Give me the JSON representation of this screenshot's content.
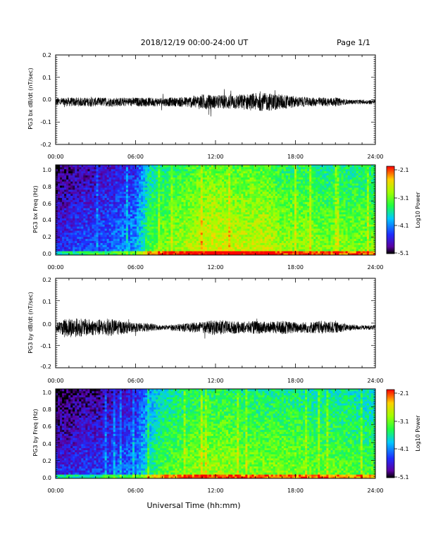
{
  "header": {
    "title": "2018/12/19  00:00-24:00 UT",
    "page": "Page 1/1"
  },
  "footer": {
    "xlabel": "Universal Time (hh:mm)"
  },
  "colorbar": {
    "label": "Log10 Power",
    "ticks": [
      "-2.1",
      "-3.1",
      "-4.1",
      "-5.1"
    ],
    "range": [
      -5.1,
      -2.1
    ]
  },
  "chart_data": [
    {
      "type": "line",
      "ylabel": "PG3 bx dB/dt (nT/sec)",
      "x_ticks": [
        "00:00",
        "06:00",
        "12:00",
        "18:00",
        "24:00"
      ],
      "y_ticks": [
        "0.2",
        "0.1",
        "0.0",
        "-0.1",
        "-0.2"
      ],
      "xlim": [
        0,
        24
      ],
      "ylim": [
        -0.2,
        0.2
      ],
      "series": [
        {
          "x": [
            0,
            1,
            2,
            3,
            4,
            5,
            6,
            7,
            8,
            9,
            10,
            11,
            12,
            13,
            14,
            15,
            16,
            17,
            18,
            19,
            20,
            21,
            22,
            23,
            24
          ],
          "envelope": [
            0.02,
            0.02,
            0.02,
            0.02,
            0.02,
            0.02,
            0.02,
            0.02,
            0.02,
            0.02,
            0.025,
            0.035,
            0.03,
            0.035,
            0.035,
            0.04,
            0.04,
            0.035,
            0.025,
            0.02,
            0.02,
            0.02,
            0.01,
            0.01,
            0.01
          ],
          "offset": -0.01
        }
      ]
    },
    {
      "type": "heatmap",
      "ylabel": "PG3 bx Freq (Hz)",
      "x_ticks": [
        "00:00",
        "06:00",
        "12:00",
        "18:00",
        "24:00"
      ],
      "y_ticks": [
        "1.0",
        "0.8",
        "0.6",
        "0.4",
        "0.2",
        "0.0"
      ],
      "xlim": [
        0,
        24
      ],
      "ylim": [
        0,
        1.0
      ],
      "log10_power_by_hour": [
        -4.5,
        -4.4,
        -4.3,
        -4.3,
        -4.2,
        -4.1,
        -4.0,
        -3.3,
        -3.1,
        -3.0,
        -2.9,
        -2.8,
        -2.7,
        -2.8,
        -2.8,
        -2.8,
        -2.8,
        -3.0,
        -3.0,
        -3.0,
        -3.1,
        -3.1,
        -3.1,
        -3.1,
        -3.1
      ]
    },
    {
      "type": "line",
      "ylabel": "PG3 by dB/dt (nT/sec)",
      "x_ticks": [
        "00:00",
        "06:00",
        "12:00",
        "18:00",
        "24:00"
      ],
      "y_ticks": [
        "0.2",
        "0.1",
        "0.0",
        "-0.1",
        "-0.2"
      ],
      "xlim": [
        0,
        24
      ],
      "ylim": [
        -0.2,
        0.2
      ],
      "series": [
        {
          "x": [
            0,
            1,
            2,
            3,
            4,
            5,
            6,
            7,
            8,
            9,
            10,
            11,
            12,
            13,
            14,
            15,
            16,
            17,
            18,
            19,
            20,
            21,
            22,
            23,
            24
          ],
          "envelope": [
            0.02,
            0.045,
            0.04,
            0.035,
            0.04,
            0.03,
            0.02,
            0.02,
            0.01,
            0.015,
            0.02,
            0.025,
            0.035,
            0.03,
            0.025,
            0.03,
            0.025,
            0.03,
            0.025,
            0.025,
            0.03,
            0.025,
            0.015,
            0.01,
            0.01
          ],
          "offset": -0.02
        }
      ]
    },
    {
      "type": "heatmap",
      "ylabel": "PG3 by Freq (Hz)",
      "x_ticks": [
        "00:00",
        "06:00",
        "12:00",
        "18:00",
        "24:00"
      ],
      "y_ticks": [
        "1.0",
        "0.8",
        "0.6",
        "0.4",
        "0.2",
        "0.0"
      ],
      "xlim": [
        0,
        24
      ],
      "ylim": [
        0,
        1.0
      ],
      "log10_power_by_hour": [
        -4.5,
        -4.5,
        -4.4,
        -4.4,
        -4.3,
        -4.2,
        -4.1,
        -3.6,
        -3.3,
        -3.2,
        -3.1,
        -3.0,
        -3.0,
        -3.0,
        -3.1,
        -3.1,
        -3.1,
        -3.1,
        -3.1,
        -3.2,
        -3.2,
        -3.2,
        -3.2,
        -3.3,
        -3.3
      ]
    }
  ]
}
